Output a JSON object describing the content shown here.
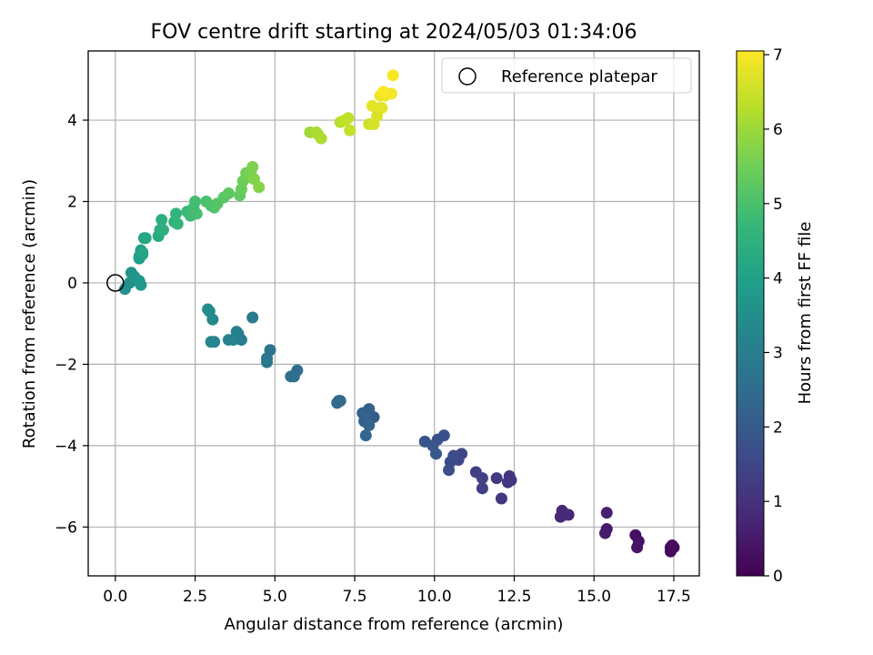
{
  "chart_data": {
    "type": "scatter",
    "title": "FOV centre drift starting at 2024/05/03 01:34:06",
    "xlabel": "Angular distance from reference (arcmin)",
    "ylabel": "Rotation from reference (arcmin)",
    "xlim": [
      -0.85,
      18.3
    ],
    "ylim": [
      -7.2,
      5.7
    ],
    "xticks": [
      0.0,
      2.5,
      5.0,
      7.5,
      10.0,
      12.5,
      15.0,
      17.5
    ],
    "xtick_labels": [
      "0.0",
      "2.5",
      "5.0",
      "7.5",
      "10.0",
      "12.5",
      "15.0",
      "17.5"
    ],
    "yticks": [
      -6,
      -4,
      -2,
      0,
      2,
      4
    ],
    "ytick_labels": [
      "−6",
      "−4",
      "−2",
      "0",
      "2",
      "4"
    ],
    "grid": true,
    "legend": {
      "position": "top-right",
      "entries": [
        "Reference platepar"
      ]
    },
    "reference_point": {
      "x": 0.0,
      "y": 0.0,
      "marker": "hollow-circle"
    },
    "colorbar": {
      "label": "Hours from first FF file",
      "range": [
        0,
        7.05
      ],
      "ticks": [
        0,
        1,
        2,
        3,
        4,
        5,
        6,
        7
      ],
      "colormap": "viridis",
      "colors": [
        "#440154",
        "#482878",
        "#3e4989",
        "#31688e",
        "#26828e",
        "#1f9e89",
        "#35b779",
        "#6ece58",
        "#b5de2b",
        "#fde725"
      ]
    },
    "series": [
      {
        "x": [
          17.4,
          17.5,
          17.4,
          17.45,
          16.3,
          16.4,
          16.35,
          15.4,
          15.35,
          15.4,
          14.2,
          14.0,
          13.95,
          14.1,
          12.4,
          12.35,
          12.3,
          12.1,
          11.95,
          11.5,
          11.3,
          11.5,
          10.85,
          10.75,
          10.5,
          10.6,
          10.45,
          10.3,
          10.1,
          9.7,
          9.95,
          10.05
        ],
        "y": [
          -6.5,
          -6.5,
          -6.6,
          -6.45,
          -6.2,
          -6.35,
          -6.5,
          -6.05,
          -6.15,
          -5.65,
          -5.7,
          -5.6,
          -5.75,
          -5.7,
          -4.85,
          -4.75,
          -4.9,
          -5.3,
          -4.8,
          -5.05,
          -4.65,
          -4.8,
          -4.2,
          -4.35,
          -4.4,
          -4.25,
          -4.6,
          -3.75,
          -3.85,
          -3.9,
          -4.0,
          -4.2
        ],
        "hours": [
          0.05,
          0.1,
          0.15,
          0.2,
          0.3,
          0.35,
          0.4,
          0.5,
          0.55,
          0.6,
          0.7,
          0.75,
          0.8,
          0.85,
          1.0,
          1.05,
          1.1,
          1.15,
          1.2,
          1.3,
          1.35,
          1.4,
          1.5,
          1.55,
          1.6,
          1.65,
          1.7,
          1.75,
          1.8,
          1.85,
          1.9,
          1.95
        ]
      },
      {
        "x": [
          8.1,
          7.95,
          7.75,
          7.8,
          7.95,
          7.85,
          7.05,
          6.95,
          7.0,
          5.7,
          5.6,
          5.5,
          4.85,
          4.75,
          4.75,
          4.3,
          3.95,
          3.85,
          3.8,
          3.7,
          3.55,
          3.1,
          3.0,
          3.05,
          2.95,
          2.9
        ],
        "y": [
          -3.3,
          -3.1,
          -3.2,
          -3.4,
          -3.5,
          -3.75,
          -2.9,
          -2.95,
          -2.9,
          -2.15,
          -2.3,
          -2.3,
          -1.65,
          -1.85,
          -1.95,
          -0.85,
          -1.4,
          -1.25,
          -1.2,
          -1.4,
          -1.4,
          -1.45,
          -1.45,
          -0.9,
          -0.7,
          -0.65
        ],
        "hours": [
          2.05,
          2.1,
          2.15,
          2.2,
          2.25,
          2.3,
          2.35,
          2.4,
          2.45,
          2.5,
          2.55,
          2.6,
          2.7,
          2.75,
          2.8,
          2.9,
          2.95,
          3.0,
          3.05,
          3.1,
          3.15,
          3.2,
          3.25,
          3.3,
          3.35,
          3.4
        ]
      },
      {
        "x": [
          0.3,
          0.45,
          0.5,
          0.6,
          0.75,
          0.8,
          0.75,
          0.8,
          0.85,
          0.75,
          0.9,
          0.85,
          0.95,
          1.35,
          1.4,
          1.45,
          1.5,
          1.85,
          1.9,
          1.95,
          2.25,
          2.35,
          2.45,
          2.5,
          2.55,
          2.85,
          3.0,
          3.1,
          3.2,
          3.4,
          3.55,
          3.9
        ],
        "y": [
          -0.15,
          0.0,
          0.25,
          0.15,
          0.05,
          -0.05,
          0.6,
          0.8,
          0.7,
          0.65,
          1.1,
          0.75,
          1.1,
          1.15,
          1.3,
          1.55,
          1.3,
          1.5,
          1.7,
          1.45,
          1.75,
          1.65,
          1.85,
          2.0,
          1.7,
          2.0,
          1.9,
          1.85,
          1.95,
          2.1,
          2.2,
          2.15
        ],
        "hours": [
          3.5,
          3.55,
          3.6,
          3.65,
          3.7,
          3.75,
          3.85,
          3.9,
          3.95,
          4.0,
          4.1,
          4.15,
          4.2,
          4.3,
          4.35,
          4.4,
          4.45,
          4.55,
          4.6,
          4.65,
          4.75,
          4.8,
          4.85,
          4.9,
          4.95,
          5.0,
          5.05,
          5.1,
          5.15,
          5.2,
          5.25,
          5.3
        ]
      },
      {
        "x": [
          3.95,
          4.0,
          4.1,
          4.2,
          4.25,
          4.3,
          4.35,
          4.5,
          6.1,
          6.3,
          6.35,
          6.45,
          7.05,
          7.2,
          7.3,
          7.35,
          7.95,
          8.1,
          8.2,
          8.3,
          8.35,
          8.05,
          8.3,
          8.45,
          8.65,
          8.7,
          8.4
        ],
        "y": [
          2.3,
          2.5,
          2.7,
          2.6,
          2.75,
          2.85,
          2.55,
          2.35,
          3.7,
          3.7,
          3.65,
          3.55,
          3.95,
          4.0,
          4.05,
          3.75,
          3.9,
          3.9,
          4.1,
          4.3,
          4.3,
          4.35,
          4.6,
          4.6,
          4.65,
          5.1,
          4.7
        ],
        "hours": [
          5.4,
          5.45,
          5.5,
          5.55,
          5.6,
          5.65,
          5.7,
          5.75,
          6.05,
          6.1,
          6.15,
          6.2,
          6.3,
          6.35,
          6.4,
          6.45,
          6.55,
          6.6,
          6.65,
          6.7,
          6.75,
          6.8,
          6.85,
          6.9,
          6.95,
          7.0,
          7.02
        ]
      }
    ]
  }
}
